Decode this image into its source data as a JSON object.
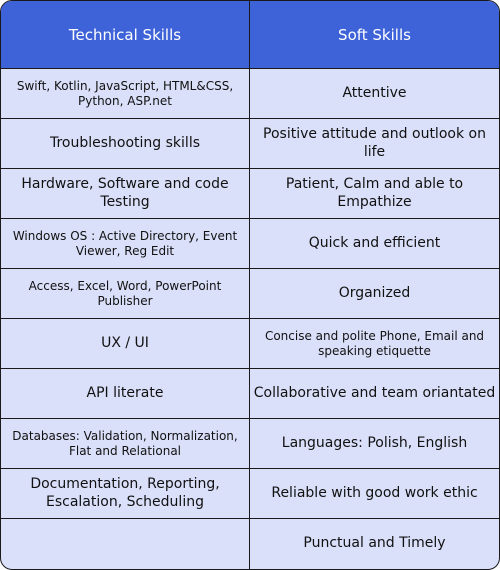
{
  "table": {
    "headers": {
      "technical": "Technical Skills",
      "soft": "Soft Skills"
    },
    "rows": [
      {
        "technical": "Swift, Kotlin, JavaScript, HTML&CSS, Python, ASP.net",
        "soft": "Attentive"
      },
      {
        "technical": "Troubleshooting skills",
        "soft": "Positive attitude and outlook on life"
      },
      {
        "technical": "Hardware, Software and code Testing",
        "soft": "Patient, Calm and able to Empathize"
      },
      {
        "technical": "Windows OS : Active Directory, Event Viewer, Reg Edit",
        "soft": "Quick and efficient"
      },
      {
        "technical": "Access, Excel, Word, PowerPoint Publisher",
        "soft": "Organized"
      },
      {
        "technical": "UX / UI",
        "soft": "Concise and polite Phone, Email and speaking etiquette"
      },
      {
        "technical": "API literate",
        "soft": "Collaborative and team oriantated"
      },
      {
        "technical": "Databases: Validation, Normalization, Flat and Relational",
        "soft": "Languages: Polish, English"
      },
      {
        "technical": "Documentation, Reporting, Escalation, Scheduling",
        "soft": "Reliable with good work ethic"
      },
      {
        "technical": "",
        "soft": "Punctual and Timely"
      }
    ]
  },
  "colors": {
    "header_bg": "#3e62d8",
    "header_text": "#ffffff",
    "cell_bg": "#dbe0fa",
    "border": "#1a1a1a"
  }
}
